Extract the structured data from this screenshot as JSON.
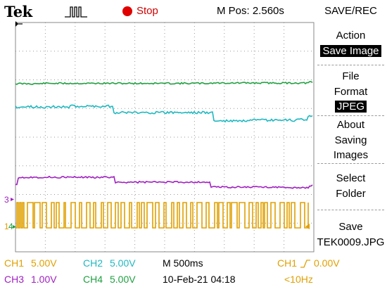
{
  "header": {
    "brand": "Tek",
    "run_state": "Stop",
    "position": "M Pos: 2.560s",
    "menu_title": "SAVE/REC"
  },
  "sidebar": {
    "items": [
      {
        "line1": "Action",
        "line2": "Save Image",
        "highlight": 2
      },
      {
        "line1": "File",
        "line2": "Format",
        "line3": "JPEG",
        "highlight": 3
      },
      {
        "line1": "About",
        "line2": "Saving",
        "line3": "Images"
      },
      {
        "line1": "Select",
        "line2": "Folder"
      },
      {
        "line1": "Save",
        "line2": "TEK0009.JPG"
      }
    ]
  },
  "status": {
    "ch1": "CH1",
    "ch1_scale": "5.00V",
    "ch2": "CH2",
    "ch2_scale": "5.00V",
    "ch3": "CH3",
    "ch3_scale": "1.00V",
    "ch4": "CH4",
    "ch4_scale": "5.00V",
    "timebase": "M 500ms",
    "date": "10-Feb-21 04:18",
    "trigger_source": "CH1",
    "trigger_level": "0.00V",
    "trigger_freq": "<10Hz"
  },
  "markers": {
    "ch3": "3",
    "ch1": "1",
    "ch4": "4"
  },
  "colors": {
    "ch1": "#e0a000",
    "ch2": "#1fb8c0",
    "ch3": "#a020c0",
    "ch4": "#20a040",
    "stop": "#e00000"
  }
}
